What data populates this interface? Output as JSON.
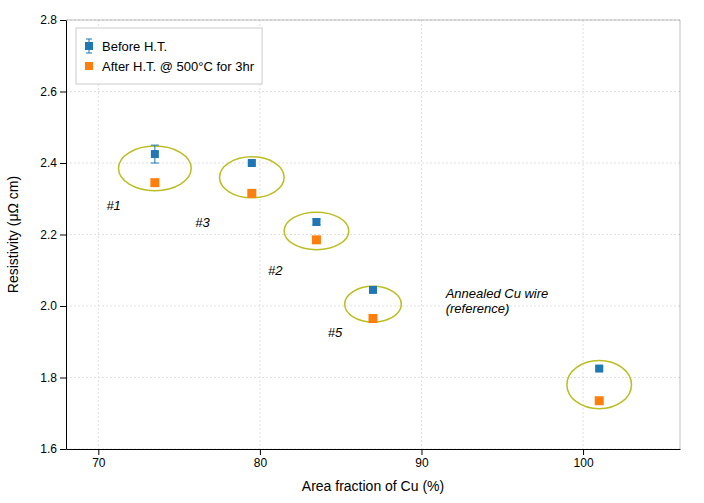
{
  "chart_data": {
    "type": "scatter",
    "x_label": "Area fraction of Cu (%)",
    "y_label": "Resistivity (μΩ cm)",
    "xlim": [
      68,
      106
    ],
    "ylim": [
      1.6,
      2.8
    ],
    "xticks": [
      70,
      80,
      90,
      100
    ],
    "yticks": [
      1.6,
      1.8,
      {
        "value": 2.0,
        "label": "2.0"
      },
      2.2,
      2.4,
      2.6,
      2.8
    ],
    "grid": true,
    "legend": "upper left",
    "series": [
      {
        "name": "Before H.T.",
        "marker": "square",
        "x": [
          73.5,
          79.5,
          83.5,
          87.0,
          101.0
        ],
        "values": [
          2.425,
          2.4,
          2.235,
          2.045,
          1.825
        ],
        "errors": [
          0.025,
          0.005,
          0.008,
          0.005,
          0.005
        ]
      },
      {
        "name": "After H.T. @ 500°C for 3hr",
        "marker": "square",
        "x": [
          73.5,
          79.5,
          83.5,
          87.0,
          101.0
        ],
        "values": [
          2.345,
          2.315,
          2.185,
          1.965,
          1.735
        ]
      }
    ],
    "ellipses": [
      {
        "x": 73.5,
        "y": 2.385,
        "width": 4.5,
        "height": 0.125
      },
      {
        "x": 79.5,
        "y": 2.36,
        "width": 4.0,
        "height": 0.115
      },
      {
        "x": 83.5,
        "y": 2.21,
        "width": 4.0,
        "height": 0.105
      },
      {
        "x": 87.0,
        "y": 2.005,
        "width": 3.5,
        "height": 0.1
      },
      {
        "x": 101.0,
        "y": 1.78,
        "width": 4.0,
        "height": 0.135
      }
    ],
    "annotations": [
      {
        "text": "#1",
        "x": 70.5,
        "y": 2.28
      },
      {
        "text": "#3",
        "x": 76.0,
        "y": 2.235
      },
      {
        "text": "#2",
        "x": 80.5,
        "y": 2.1
      },
      {
        "text": "#5",
        "x": 84.2,
        "y": 1.925
      },
      {
        "text": "Annealed Cu wire\n(reference)",
        "x": 91.5,
        "y": 2.015
      }
    ]
  }
}
